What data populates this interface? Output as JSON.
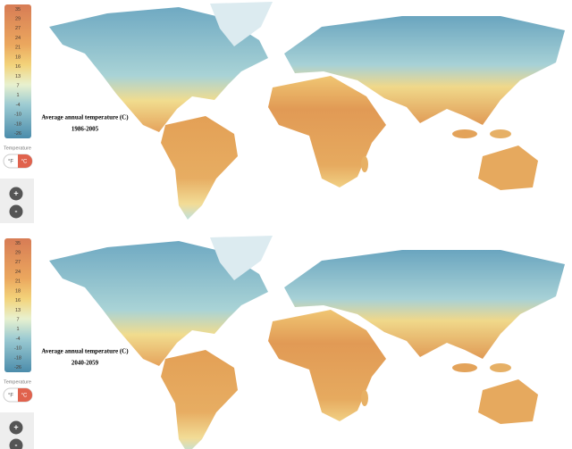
{
  "panels": [
    {
      "legend": {
        "labels": [
          35,
          29,
          27,
          24,
          21,
          18,
          16,
          13,
          7,
          1,
          -4,
          -10,
          -18,
          -26
        ],
        "title": "Temperature"
      },
      "units": [
        "°F",
        "°C"
      ],
      "zoom": [
        "+",
        "-"
      ],
      "caption": {
        "title": "Average annual temperature (C)",
        "period": "1986-2005"
      }
    },
    {
      "legend": {
        "labels": [
          35,
          29,
          27,
          24,
          21,
          18,
          16,
          13,
          7,
          1,
          -4,
          -10,
          -18,
          -26
        ],
        "title": "Temperature"
      },
      "units": [
        "°F",
        "°C"
      ],
      "zoom": [
        "+",
        "-"
      ],
      "caption": {
        "title": "Average annual temperature (C)",
        "period": "2040-2059"
      }
    }
  ]
}
